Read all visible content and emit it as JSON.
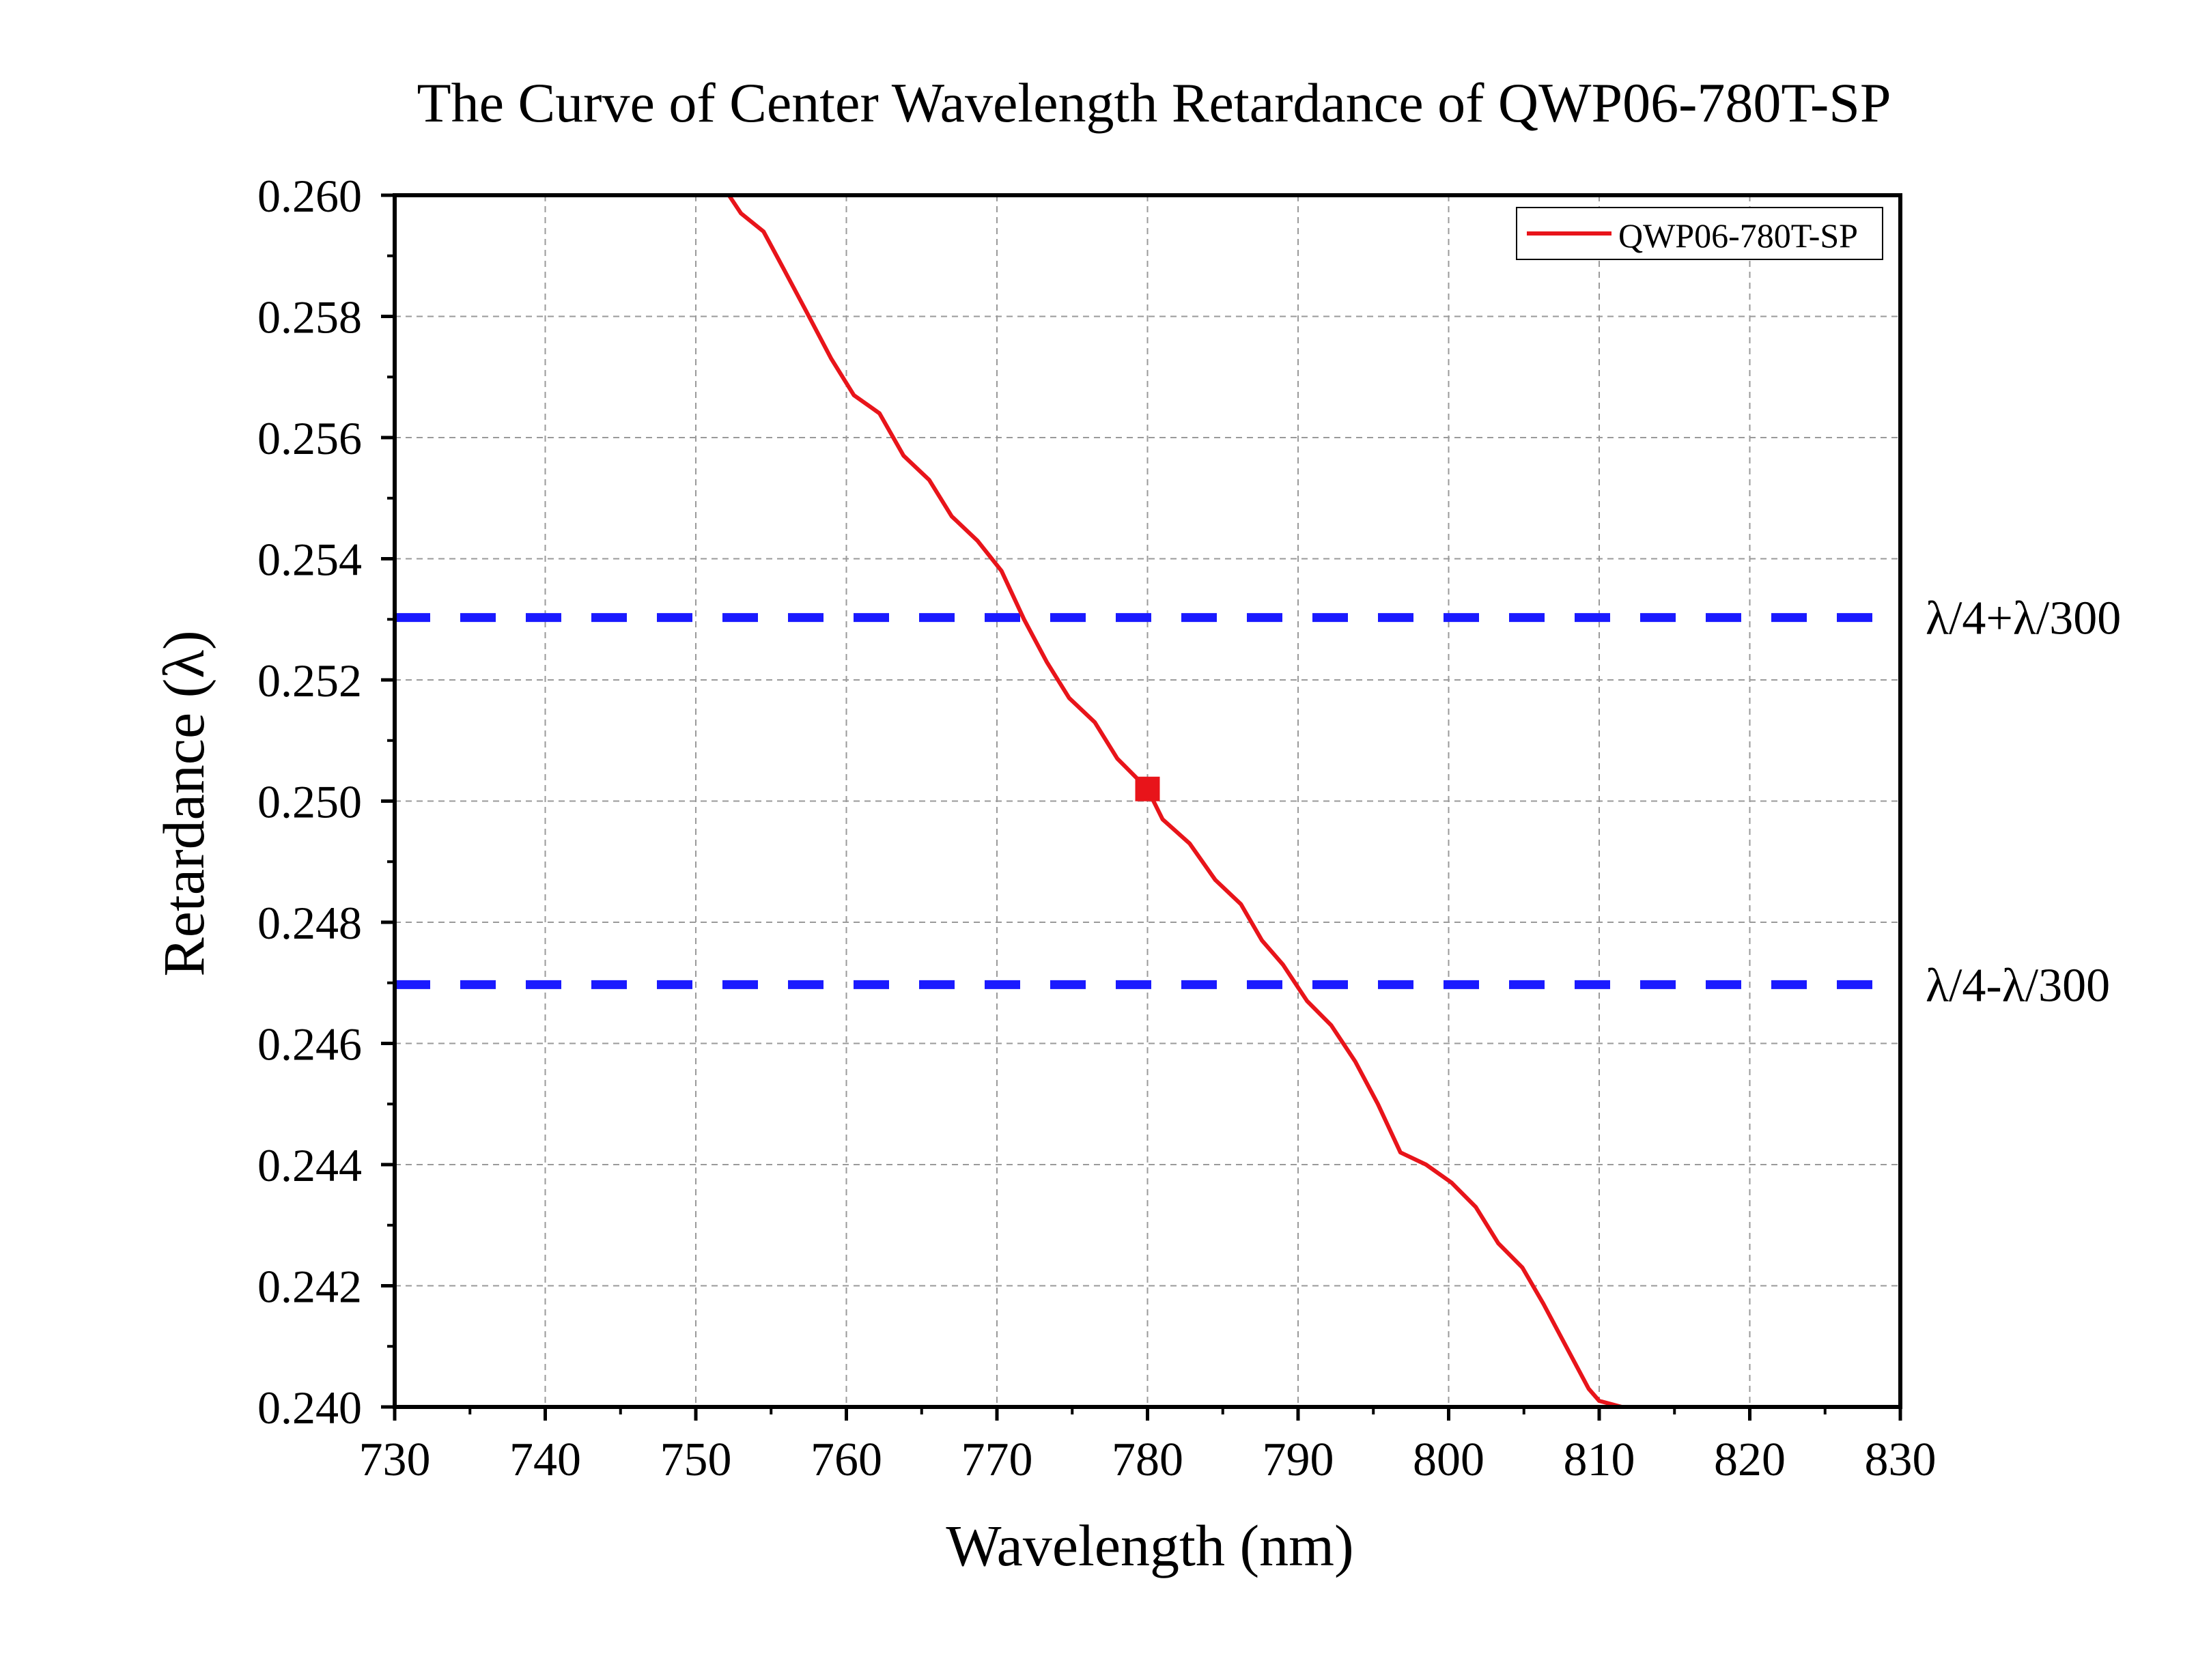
{
  "chart_data": {
    "type": "line",
    "title": "The Curve of  Center Wavelength Retardance of QWP06-780T-SP",
    "xlabel": "Wavelength (nm)",
    "ylabel": "Retardance (λ)",
    "xlim": [
      730,
      830
    ],
    "ylim": [
      0.24,
      0.26
    ],
    "xticks": [
      730,
      740,
      750,
      760,
      770,
      780,
      790,
      800,
      810,
      820,
      830
    ],
    "yticks": [
      0.24,
      0.242,
      0.244,
      0.246,
      0.248,
      0.25,
      0.252,
      0.254,
      0.256,
      0.258,
      0.26
    ],
    "xtick_labels": [
      "730",
      "740",
      "750",
      "760",
      "770",
      "780",
      "790",
      "800",
      "810",
      "820",
      "830"
    ],
    "ytick_labels": [
      "0.240",
      "0.242",
      "0.244",
      "0.246",
      "0.248",
      "0.250",
      "0.252",
      "0.254",
      "0.256",
      "0.258",
      "0.260"
    ],
    "grid": true,
    "legend_position": "top-right",
    "series": [
      {
        "name": "QWP06-780T-SP",
        "color": "#e8141a",
        "x": [
          752.2,
          753.0,
          754.5,
          755.8,
          757.3,
          759.0,
          760.5,
          762.2,
          763.8,
          765.5,
          767.0,
          768.7,
          770.3,
          771.8,
          773.3,
          774.8,
          776.5,
          778.0,
          779.2,
          780.0,
          781.0,
          782.8,
          784.5,
          786.2,
          787.6,
          789.0,
          790.6,
          792.2,
          793.8,
          795.3,
          796.8,
          798.5,
          800.2,
          801.8,
          803.3,
          804.9,
          806.3,
          807.8,
          809.3,
          810.0,
          811.5
        ],
        "y": [
          0.26,
          0.2597,
          0.2594,
          0.2588,
          0.2581,
          0.2573,
          0.2567,
          0.2564,
          0.2557,
          0.2553,
          0.2547,
          0.2543,
          0.2538,
          0.253,
          0.2523,
          0.2517,
          0.2513,
          0.2507,
          0.2504,
          0.2502,
          0.2497,
          0.2493,
          0.2487,
          0.2483,
          0.2477,
          0.2473,
          0.2467,
          0.2463,
          0.2457,
          0.245,
          0.2442,
          0.244,
          0.2437,
          0.2433,
          0.2427,
          0.2423,
          0.2417,
          0.241,
          0.2403,
          0.2401,
          0.24
        ]
      }
    ],
    "marker": {
      "x": 780,
      "y": 0.2502,
      "color": "#e8141a"
    },
    "reference_lines": [
      {
        "y": 0.25303,
        "label": "λ/4+λ/300",
        "color": "#1a1aff"
      },
      {
        "y": 0.24697,
        "label": "λ/4-λ/300",
        "color": "#1a1aff"
      }
    ]
  }
}
